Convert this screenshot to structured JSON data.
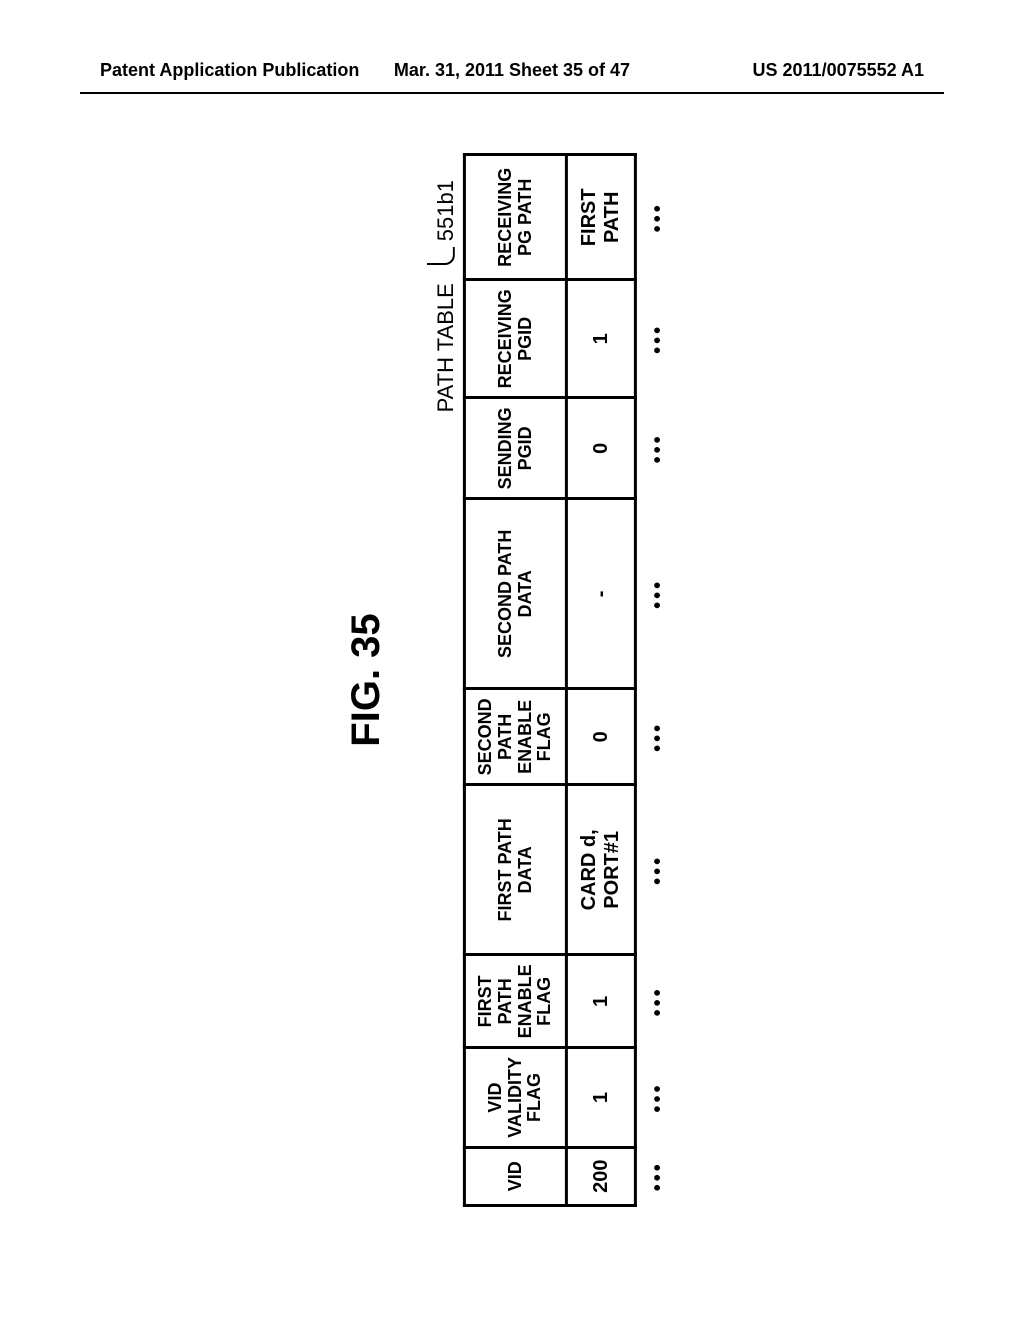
{
  "header": {
    "left": "Patent Application Publication",
    "center": "Mar. 31, 2011  Sheet 35 of 47",
    "right": "US 2011/0075552 A1"
  },
  "figure": {
    "title": "FIG. 35",
    "table_label": "PATH TABLE",
    "callout_ref": "551b1"
  },
  "table": {
    "columns": [
      "VID",
      "VID VALIDITY FLAG",
      "FIRST PATH ENABLE FLAG",
      "FIRST PATH DATA",
      "SECOND PATH ENABLE FLAG",
      "SECOND PATH DATA",
      "SENDING PGID",
      "RECEIVING PGID",
      "RECEIVING PG PATH"
    ],
    "row1": {
      "vid": "200",
      "vid_validity_flag": "1",
      "first_path_enable_flag": "1",
      "first_path_data": "CARD d, PORT#1",
      "second_path_enable_flag": "0",
      "second_path_data": "-",
      "sending_pgid": "0",
      "receiving_pgid": "1",
      "receiving_pg_path": "FIRST PATH"
    },
    "ellipsis": "•••"
  }
}
